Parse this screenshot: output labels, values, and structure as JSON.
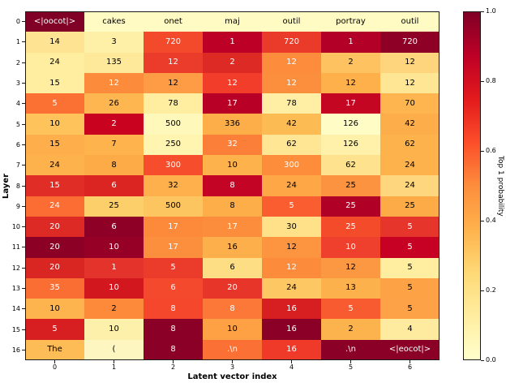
{
  "figure": {
    "background": "#ffffff",
    "frame_color": "#1a1a1a",
    "text_dark": "#000000",
    "text_light": "#ffffff"
  },
  "chart_data": {
    "type": "heatmap",
    "title": "",
    "xlabel": "Latent vector index",
    "ylabel": "Layer",
    "x_ticks": [
      "0",
      "1",
      "2",
      "3",
      "4",
      "5",
      "6"
    ],
    "y_ticks": [
      "0",
      "1",
      "2",
      "3",
      "4",
      "5",
      "6",
      "7",
      "8",
      "9",
      "10",
      "11",
      "12",
      "13",
      "14",
      "15",
      "16"
    ],
    "colormap": "YlOrRd",
    "colorbar": {
      "label": "Top 1 probability",
      "ticks": [
        "1.0",
        "0.8",
        "0.6",
        "0.4",
        "0.2",
        "0.0"
      ],
      "range": [
        0.0,
        1.0
      ],
      "gradient_stops": [
        "#ffffcc",
        "#ffeda0",
        "#fed976",
        "#feb24c",
        "#fd8d3c",
        "#fc4e2a",
        "#e31a1c",
        "#bd0026",
        "#800026"
      ]
    },
    "cells_note": "each cell = [label, bg_hex, text(k=black,w=white), estimated_top1_probability]",
    "cells": [
      [
        [
          "<|oocot|>",
          "#800026",
          "w",
          1.0
        ],
        [
          "cakes",
          "#fffbc2",
          "k",
          0.03
        ],
        [
          "onet",
          "#fffbc2",
          "k",
          0.03
        ],
        [
          "maj",
          "#fffbc2",
          "k",
          0.03
        ],
        [
          "outil",
          "#fffbc2",
          "k",
          0.03
        ],
        [
          "portray",
          "#fffbc2",
          "k",
          0.03
        ],
        [
          "outil",
          "#fffbc2",
          "k",
          0.03
        ]
      ],
      [
        [
          "14",
          "#fee392",
          "k",
          0.14
        ],
        [
          "3",
          "#fff0a7",
          "k",
          0.1
        ],
        [
          "720",
          "#f34a2c",
          "w",
          0.67
        ],
        [
          "1",
          "#bd0026",
          "w",
          0.88
        ],
        [
          "720",
          "#e93a2a",
          "w",
          0.73
        ],
        [
          "1",
          "#b30026",
          "w",
          0.89
        ],
        [
          "720",
          "#8f0026",
          "w",
          0.96
        ]
      ],
      [
        [
          "24",
          "#ffeda0",
          "k",
          0.12
        ],
        [
          "135",
          "#fee99b",
          "k",
          0.11
        ],
        [
          "12",
          "#eb3b2a",
          "w",
          0.73
        ],
        [
          "2",
          "#de2a24",
          "w",
          0.77
        ],
        [
          "12",
          "#fd8d3c",
          "w",
          0.5
        ],
        [
          "2",
          "#fec360",
          "k",
          0.3
        ],
        [
          "12",
          "#fed47c",
          "k",
          0.21
        ]
      ],
      [
        [
          "15",
          "#ffeda0",
          "k",
          0.12
        ],
        [
          "12",
          "#fc8b3b",
          "w",
          0.51
        ],
        [
          "12",
          "#fd9c44",
          "k",
          0.45
        ],
        [
          "12",
          "#f23d2a",
          "w",
          0.7
        ],
        [
          "12",
          "#fc8f3e",
          "w",
          0.5
        ],
        [
          "12",
          "#feb04b",
          "k",
          0.38
        ],
        [
          "12",
          "#ffe694",
          "k",
          0.13
        ]
      ],
      [
        [
          "5",
          "#fb7134",
          "w",
          0.57
        ],
        [
          "26",
          "#feb750",
          "k",
          0.35
        ],
        [
          "78",
          "#ffeda0",
          "k",
          0.12
        ],
        [
          "17",
          "#b80026",
          "w",
          0.88
        ],
        [
          "78",
          "#ffefa5",
          "k",
          0.11
        ],
        [
          "17",
          "#c50623",
          "w",
          0.85
        ],
        [
          "70",
          "#feb54f",
          "k",
          0.36
        ]
      ],
      [
        [
          "10",
          "#fec35b",
          "k",
          0.3
        ],
        [
          "2",
          "#c9031f",
          "w",
          0.84
        ],
        [
          "500",
          "#fff8bb",
          "k",
          0.06
        ],
        [
          "336",
          "#fdae49",
          "k",
          0.4
        ],
        [
          "42",
          "#fdbb53",
          "k",
          0.34
        ],
        [
          "126",
          "#fffcc5",
          "k",
          0.03
        ],
        [
          "42",
          "#fdad49",
          "k",
          0.4
        ]
      ],
      [
        [
          "15",
          "#feae4a",
          "k",
          0.4
        ],
        [
          "7",
          "#feb34d",
          "k",
          0.37
        ],
        [
          "250",
          "#fff4b0",
          "k",
          0.08
        ],
        [
          "32",
          "#fc7f39",
          "w",
          0.53
        ],
        [
          "62",
          "#fee695",
          "k",
          0.13
        ],
        [
          "126",
          "#fff1aa",
          "k",
          0.09
        ],
        [
          "62",
          "#feb24c",
          "k",
          0.38
        ]
      ],
      [
        [
          "24",
          "#feb24c",
          "k",
          0.38
        ],
        [
          "8",
          "#fdab47",
          "k",
          0.41
        ],
        [
          "300",
          "#f64d2d",
          "w",
          0.66
        ],
        [
          "10",
          "#feb24c",
          "k",
          0.38
        ],
        [
          "300",
          "#fd8c3b",
          "w",
          0.5
        ],
        [
          "62",
          "#fee28d",
          "k",
          0.15
        ],
        [
          "24",
          "#feb24c",
          "k",
          0.38
        ]
      ],
      [
        [
          "15",
          "#e02e26",
          "w",
          0.76
        ],
        [
          "6",
          "#da2523",
          "w",
          0.78
        ],
        [
          "32",
          "#fdb04b",
          "k",
          0.39
        ],
        [
          "8",
          "#c40425",
          "w",
          0.86
        ],
        [
          "24",
          "#fda746",
          "k",
          0.41
        ],
        [
          "25",
          "#fc9340",
          "k",
          0.47
        ],
        [
          "24",
          "#fed67e",
          "k",
          0.2
        ]
      ],
      [
        [
          "24",
          "#fb6d33",
          "w",
          0.58
        ],
        [
          "25",
          "#fdcf6b",
          "k",
          0.24
        ],
        [
          "500",
          "#fdc55f",
          "k",
          0.29
        ],
        [
          "8",
          "#fdae49",
          "k",
          0.4
        ],
        [
          "5",
          "#fa5e30",
          "w",
          0.62
        ],
        [
          "25",
          "#b00026",
          "w",
          0.9
        ],
        [
          "25",
          "#fdab47",
          "k",
          0.41
        ]
      ],
      [
        [
          "20",
          "#de2a24",
          "w",
          0.77
        ],
        [
          "6",
          "#8e0026",
          "w",
          0.96
        ],
        [
          "17",
          "#fc8a3a",
          "w",
          0.51
        ],
        [
          "17",
          "#fc8d3c",
          "w",
          0.5
        ],
        [
          "30",
          "#fee189",
          "k",
          0.15
        ],
        [
          "25",
          "#f44c2b",
          "w",
          0.67
        ],
        [
          "5",
          "#e6352a",
          "w",
          0.74
        ]
      ],
      [
        [
          "20",
          "#8c0026",
          "w",
          0.97
        ],
        [
          "10",
          "#960026",
          "w",
          0.94
        ],
        [
          "17",
          "#fc8f3e",
          "w",
          0.5
        ],
        [
          "16",
          "#fdaf4b",
          "k",
          0.39
        ],
        [
          "12",
          "#fc9440",
          "k",
          0.47
        ],
        [
          "10",
          "#ee402d",
          "w",
          0.71
        ],
        [
          "5",
          "#c70123",
          "w",
          0.85
        ]
      ],
      [
        [
          "20",
          "#da2623",
          "w",
          0.78
        ],
        [
          "1",
          "#e4332a",
          "w",
          0.75
        ],
        [
          "5",
          "#eb3b2a",
          "w",
          0.73
        ],
        [
          "6",
          "#fede85",
          "k",
          0.17
        ],
        [
          "12",
          "#fc8b3b",
          "w",
          0.51
        ],
        [
          "12",
          "#fc9841",
          "k",
          0.46
        ],
        [
          "5",
          "#ffeda0",
          "k",
          0.12
        ]
      ],
      [
        [
          "35",
          "#fb6e33",
          "w",
          0.58
        ],
        [
          "10",
          "#d2171f",
          "w",
          0.81
        ],
        [
          "6",
          "#f4492c",
          "w",
          0.68
        ],
        [
          "20",
          "#e8352a",
          "w",
          0.74
        ],
        [
          "24",
          "#fdc863",
          "k",
          0.27
        ],
        [
          "13",
          "#fdb14c",
          "k",
          0.38
        ],
        [
          "5",
          "#fda346",
          "k",
          0.43
        ]
      ],
      [
        [
          "10",
          "#fdb44e",
          "k",
          0.37
        ],
        [
          "2",
          "#fc8a3a",
          "k",
          0.49
        ],
        [
          "8",
          "#f4472c",
          "w",
          0.68
        ],
        [
          "8",
          "#fb7838",
          "w",
          0.55
        ],
        [
          "16",
          "#d71f21",
          "w",
          0.79
        ],
        [
          "5",
          "#f75b2f",
          "w",
          0.64
        ],
        [
          "5",
          "#fda246",
          "k",
          0.43
        ]
      ],
      [
        [
          "5",
          "#d71f21",
          "w",
          0.79
        ],
        [
          "10",
          "#fdf0ab",
          "k",
          0.1
        ],
        [
          "8",
          "#8b0026",
          "w",
          0.97
        ],
        [
          "10",
          "#fda144",
          "k",
          0.43
        ],
        [
          "16",
          "#8b0026",
          "w",
          0.97
        ],
        [
          "2",
          "#fdb34d",
          "k",
          0.37
        ],
        [
          "4",
          "#feeb9f",
          "k",
          0.11
        ]
      ],
      [
        [
          "The",
          "#fdbc55",
          "k",
          0.33
        ],
        [
          "(",
          "#fdf6c0",
          "k",
          0.04
        ],
        [
          "8",
          "#8b0026",
          "w",
          0.97
        ],
        [
          ".\\n",
          "#fb7034",
          "w",
          0.57
        ],
        [
          "16",
          "#ef3a2a",
          "w",
          0.72
        ],
        [
          ".\\n",
          "#8b0026",
          "w",
          0.97
        ],
        [
          "<|eocot|>",
          "#8b0026",
          "w",
          0.97
        ]
      ]
    ]
  }
}
